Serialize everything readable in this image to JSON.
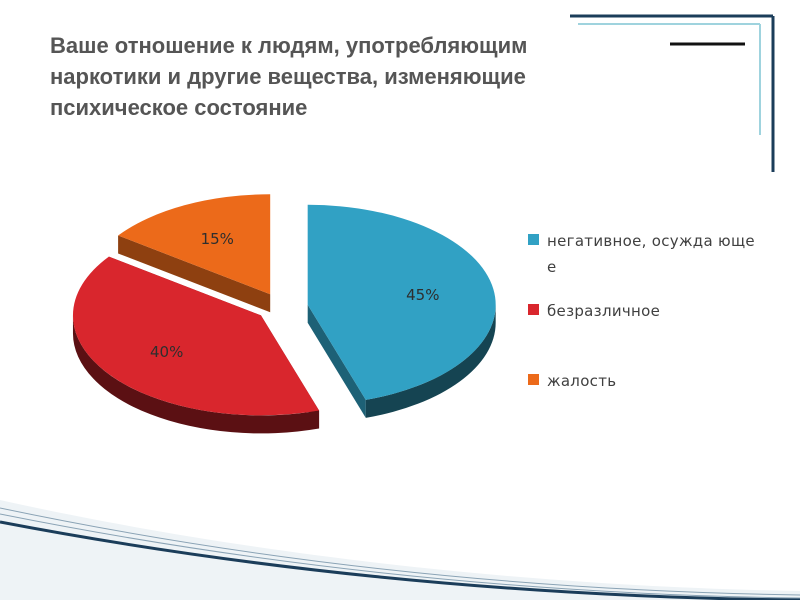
{
  "slide": {
    "title": "Ваше отношение к людям, употребляющим\nнаркотики и другие вещества, изменяющие\nпсихическое состояние"
  },
  "chart_data": {
    "type": "pie",
    "variant": "exploded-3d",
    "title": "Ваше отношение к людям, употребляющим наркотики и другие вещества, изменяющие психическое состояние",
    "categories": [
      "негативное, осуждающее",
      "безразличное",
      "жалость"
    ],
    "values": [
      45,
      40,
      15
    ],
    "data_labels": [
      "45%",
      "40%",
      "15%"
    ],
    "colors": [
      "#31a1c4",
      "#d9262d",
      "#ec6a1a"
    ],
    "legend": {
      "placement": "right",
      "items": [
        "негативное, осужда ющее",
        "безразличное",
        "жалость"
      ]
    }
  }
}
